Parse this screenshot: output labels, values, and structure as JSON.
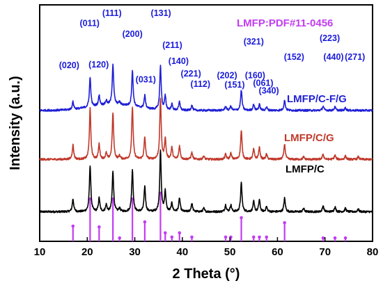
{
  "chart_data": {
    "type": "line",
    "xlabel": "2 Theta (°)",
    "ylabel": "Intensity (a.u.)",
    "xlim": [
      10,
      80
    ],
    "xticks": [
      10,
      20,
      30,
      40,
      50,
      60,
      70,
      80
    ],
    "yticks": "none",
    "legend_placement": "top-right",
    "reference": {
      "name": "LMFP:PDF#11-0456",
      "color": "#c23cf2",
      "peaks": [
        {
          "x": 17.0,
          "h": 0.18
        },
        {
          "x": 20.6,
          "h": 0.5
        },
        {
          "x": 22.5,
          "h": 0.17
        },
        {
          "x": 25.4,
          "h": 0.5
        },
        {
          "x": 26.8,
          "h": 0.04
        },
        {
          "x": 29.5,
          "h": 0.5
        },
        {
          "x": 32.1,
          "h": 0.23
        },
        {
          "x": 35.4,
          "h": 0.57
        },
        {
          "x": 36.4,
          "h": 0.1
        },
        {
          "x": 37.8,
          "h": 0.05
        },
        {
          "x": 39.4,
          "h": 0.1
        },
        {
          "x": 42.0,
          "h": 0.05
        },
        {
          "x": 49.1,
          "h": 0.05
        },
        {
          "x": 50.2,
          "h": 0.05
        },
        {
          "x": 52.4,
          "h": 0.28
        },
        {
          "x": 55.0,
          "h": 0.05
        },
        {
          "x": 56.2,
          "h": 0.05
        },
        {
          "x": 57.7,
          "h": 0.05
        },
        {
          "x": 61.5,
          "h": 0.22
        },
        {
          "x": 69.6,
          "h": 0.04
        },
        {
          "x": 72.1,
          "h": 0.04
        },
        {
          "x": 74.3,
          "h": 0.04
        }
      ]
    },
    "series": [
      {
        "name": "LMFP/C",
        "color": "#000000",
        "baseline": 0.35,
        "noise": 0.012,
        "peaks": [
          [
            17.0,
            0.15
          ],
          [
            20.6,
            0.55
          ],
          [
            22.5,
            0.16
          ],
          [
            24.0,
            0.08
          ],
          [
            25.4,
            0.48
          ],
          [
            26.8,
            0.04
          ],
          [
            29.5,
            0.5
          ],
          [
            32.1,
            0.3
          ],
          [
            35.4,
            0.72
          ],
          [
            36.4,
            0.24
          ],
          [
            37.8,
            0.1
          ],
          [
            39.4,
            0.16
          ],
          [
            42.0,
            0.1
          ],
          [
            44.5,
            0.04
          ],
          [
            49.1,
            0.08
          ],
          [
            50.2,
            0.08
          ],
          [
            52.4,
            0.34
          ],
          [
            55.0,
            0.12
          ],
          [
            56.2,
            0.14
          ],
          [
            57.7,
            0.06
          ],
          [
            61.5,
            0.16
          ],
          [
            65.5,
            0.04
          ],
          [
            69.6,
            0.07
          ],
          [
            72.1,
            0.06
          ],
          [
            74.3,
            0.04
          ],
          [
            77.0,
            0.03
          ]
        ]
      },
      {
        "name": "LMFP/C/G",
        "color": "#c0392b",
        "baseline": 0.97,
        "noise": 0.012,
        "peaks": [
          [
            17.0,
            0.17
          ],
          [
            20.6,
            0.6
          ],
          [
            22.5,
            0.18
          ],
          [
            24.0,
            0.07
          ],
          [
            25.4,
            0.55
          ],
          [
            26.8,
            0.04
          ],
          [
            29.5,
            0.62
          ],
          [
            32.1,
            0.26
          ],
          [
            35.4,
            0.72
          ],
          [
            36.4,
            0.24
          ],
          [
            37.8,
            0.14
          ],
          [
            39.4,
            0.16
          ],
          [
            42.0,
            0.08
          ],
          [
            44.5,
            0.04
          ],
          [
            49.1,
            0.06
          ],
          [
            50.2,
            0.07
          ],
          [
            52.4,
            0.34
          ],
          [
            55.0,
            0.12
          ],
          [
            56.2,
            0.14
          ],
          [
            57.7,
            0.06
          ],
          [
            61.5,
            0.18
          ],
          [
            65.5,
            0.03
          ],
          [
            69.6,
            0.06
          ],
          [
            72.1,
            0.05
          ],
          [
            74.3,
            0.04
          ],
          [
            77.0,
            0.03
          ]
        ]
      },
      {
        "name": "LMFP/C-F/G",
        "color": "#1f1fd6",
        "baseline": 1.55,
        "noise": 0.012,
        "peaks": [
          [
            17.0,
            0.09
          ],
          [
            20.6,
            0.35
          ],
          [
            22.5,
            0.12
          ],
          [
            24.0,
            0.05
          ],
          [
            25.4,
            0.48
          ],
          [
            26.8,
            0.03
          ],
          [
            29.5,
            0.42
          ],
          [
            32.1,
            0.15
          ],
          [
            35.4,
            0.52
          ],
          [
            36.4,
            0.16
          ],
          [
            37.8,
            0.07
          ],
          [
            39.4,
            0.1
          ],
          [
            42.0,
            0.06
          ],
          [
            49.1,
            0.05
          ],
          [
            50.2,
            0.05
          ],
          [
            52.4,
            0.24
          ],
          [
            55.0,
            0.07
          ],
          [
            56.2,
            0.07
          ],
          [
            57.7,
            0.04
          ],
          [
            61.5,
            0.12
          ],
          [
            69.6,
            0.05
          ],
          [
            72.1,
            0.04
          ],
          [
            74.3,
            0.03
          ]
        ],
        "hump": {
          "center": 25.5,
          "width": 6.5,
          "height": 0.07
        }
      }
    ],
    "ylim": [
      0,
      2.8
    ],
    "annotations": [
      {
        "text": "(020)",
        "x": 16.2,
        "y": 2.05
      },
      {
        "text": "(011)",
        "x": 20.5,
        "y": 2.55
      },
      {
        "text": "(120)",
        "x": 22.4,
        "y": 2.06
      },
      {
        "text": "(111)",
        "x": 25.2,
        "y": 2.67
      },
      {
        "text": "(200)",
        "x": 29.5,
        "y": 2.42
      },
      {
        "text": "(131)",
        "x": 35.5,
        "y": 2.67
      },
      {
        "text": "(211)",
        "x": 37.9,
        "y": 2.29
      },
      {
        "text": "(031)",
        "x": 32.3,
        "y": 1.88
      },
      {
        "text": "(140)",
        "x": 39.2,
        "y": 2.1
      },
      {
        "text": "(221)",
        "x": 41.8,
        "y": 1.95
      },
      {
        "text": "(112)",
        "x": 43.8,
        "y": 1.83
      },
      {
        "text": "(202)",
        "x": 49.4,
        "y": 1.93
      },
      {
        "text": "(151)",
        "x": 51.0,
        "y": 1.82
      },
      {
        "text": "(321)",
        "x": 55.0,
        "y": 2.33
      },
      {
        "text": "(160)",
        "x": 55.3,
        "y": 1.93
      },
      {
        "text": "(061)",
        "x": 57.0,
        "y": 1.84
      },
      {
        "text": "(340)",
        "x": 58.2,
        "y": 1.75
      },
      {
        "text": "(152)",
        "x": 63.5,
        "y": 2.15
      },
      {
        "text": "(223)",
        "x": 71.0,
        "y": 2.37
      },
      {
        "text": "(440)",
        "x": 71.8,
        "y": 2.15
      },
      {
        "text": "(271)",
        "x": 76.3,
        "y": 2.15
      }
    ]
  }
}
